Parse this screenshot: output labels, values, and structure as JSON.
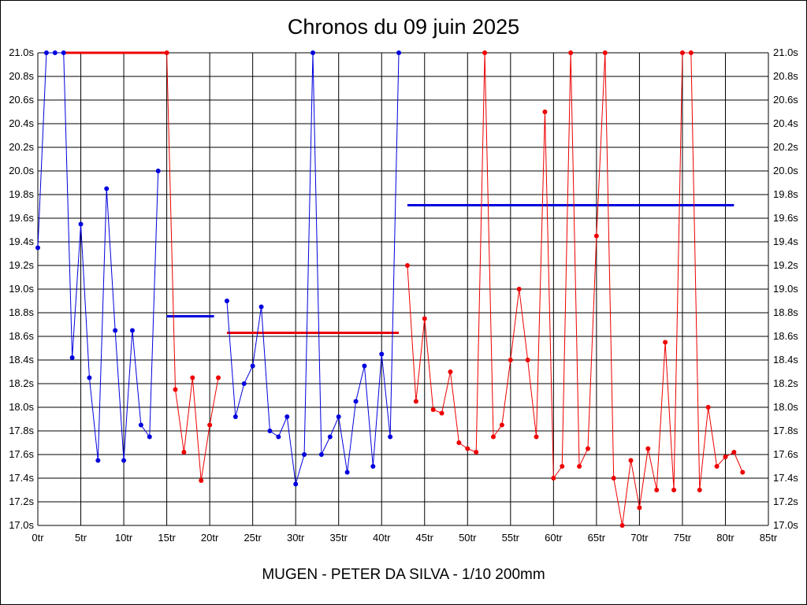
{
  "page": {
    "title": "Chronos du 09 juin 2025",
    "subtitle": "MUGEN - PETER DA SILVA - 1/10 200mm"
  },
  "chart_data": {
    "type": "line",
    "title": "Chronos du 09 juin 2025",
    "subtitle": "MUGEN - PETER DA SILVA - 1/10 200mm",
    "x_unit": "tr",
    "y_unit": "s",
    "xlim": [
      0,
      85
    ],
    "ylim": [
      17.0,
      21.0
    ],
    "x_step": 5,
    "y_step": 0.2,
    "grid": true,
    "clip_max": 21.0,
    "x_ticks": [
      "0tr",
      "5tr",
      "10tr",
      "15tr",
      "20tr",
      "25tr",
      "30tr",
      "35tr",
      "40tr",
      "45tr",
      "50tr",
      "55tr",
      "60tr",
      "65tr",
      "70tr",
      "75tr",
      "80tr",
      "85tr"
    ],
    "y_ticks": [
      "21.0s",
      "20.8s",
      "20.6s",
      "20.4s",
      "20.2s",
      "20.0s",
      "19.8s",
      "19.6s",
      "19.4s",
      "19.2s",
      "19.0s",
      "18.8s",
      "18.6s",
      "18.4s",
      "18.2s",
      "18.0s",
      "17.8s",
      "17.6s",
      "17.4s",
      "17.2s",
      "17.0s"
    ],
    "colors": {
      "blue": "#0000dd",
      "red": "#ee0000"
    },
    "series": [
      {
        "name": "run-1-blue-laps",
        "color": "blue",
        "start_lap": 0,
        "times": [
          19.35,
          21.0,
          21.0,
          21.0,
          18.42,
          19.55,
          18.25,
          17.55,
          19.85,
          18.65,
          17.55,
          18.65,
          17.85,
          17.75,
          20.0
        ]
      },
      {
        "name": "run-2-red-laps",
        "color": "red",
        "start_lap": 15,
        "times": [
          21.0,
          18.15,
          17.62,
          18.25,
          17.38,
          17.85,
          18.25
        ]
      },
      {
        "name": "run-3-blue-laps",
        "color": "blue",
        "start_lap": 22,
        "times": [
          18.9,
          17.92,
          18.2,
          18.35,
          18.85,
          17.8,
          17.75,
          17.92,
          17.35,
          17.6,
          21.0,
          17.6,
          17.75,
          17.92,
          17.45,
          18.05,
          18.35,
          17.5,
          18.45,
          17.75,
          21.0
        ]
      },
      {
        "name": "run-4-red-laps",
        "color": "red",
        "start_lap": 43,
        "times": [
          19.2,
          18.05,
          18.75,
          17.98,
          17.95,
          18.3,
          17.7,
          17.65,
          17.62,
          21.0,
          17.75,
          17.85,
          18.4,
          19.0,
          18.4,
          17.75,
          20.5,
          17.4,
          17.5,
          21.0,
          17.5,
          17.65,
          19.45,
          21.0,
          17.4,
          17.0,
          17.55,
          17.15,
          17.65,
          17.3,
          18.55,
          17.3,
          21.0,
          21.0,
          17.3,
          18.0,
          17.5,
          17.58,
          17.62,
          17.45
        ]
      }
    ],
    "average_lines": [
      {
        "name": "average-line-run-1",
        "color": "red",
        "value": 21.0,
        "from_lap": 3,
        "to_lap": 15
      },
      {
        "name": "average-line-run-2",
        "color": "blue",
        "value": 18.77,
        "from_lap": 15,
        "to_lap": 20.5
      },
      {
        "name": "average-line-run-3",
        "color": "red",
        "value": 18.63,
        "from_lap": 22,
        "to_lap": 42
      },
      {
        "name": "average-line-run-4",
        "color": "blue",
        "value": 19.71,
        "from_lap": 43,
        "to_lap": 81
      }
    ]
  }
}
